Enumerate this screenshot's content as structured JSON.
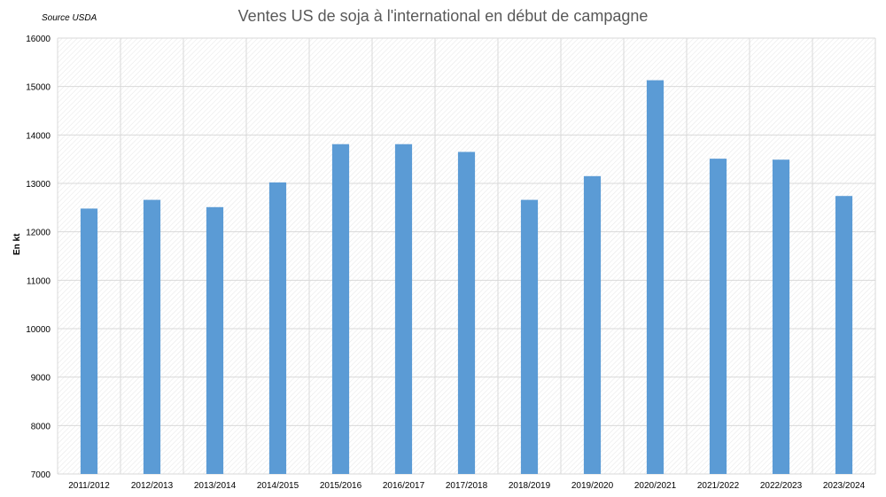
{
  "source_note": "Source USDA",
  "chart_data": {
    "type": "bar",
    "title": "Ventes US de soja à l'international en début de campagne",
    "xlabel": "",
    "ylabel": "En kt",
    "ylim": [
      7000,
      16000
    ],
    "yticks": [
      7000,
      8000,
      9000,
      10000,
      11000,
      12000,
      13000,
      14000,
      15000,
      16000
    ],
    "grid": true,
    "categories": [
      "2011/2012",
      "2012/2013",
      "2013/2014",
      "2014/2015",
      "2015/2016",
      "2016/2017",
      "2017/2018",
      "2018/2019",
      "2019/2020",
      "2020/2021",
      "2021/2022",
      "2022/2023",
      "2023/2024"
    ],
    "values": [
      12480,
      12660,
      12510,
      13020,
      13810,
      13810,
      13650,
      12660,
      13150,
      15130,
      13510,
      13490,
      12740
    ],
    "bar_color": "#5B9BD5"
  }
}
